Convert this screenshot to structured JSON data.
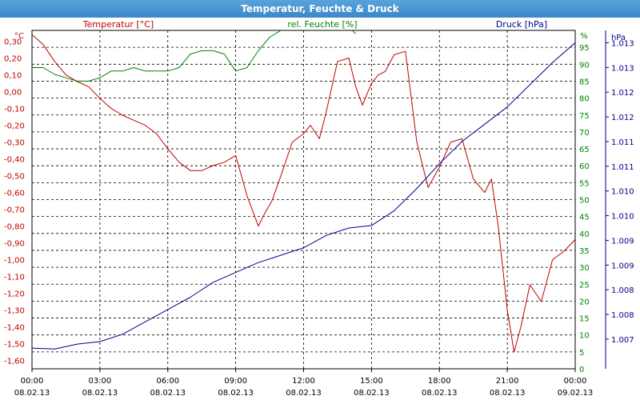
{
  "window": {
    "title": "Temperatur, Feuchte & Druck"
  },
  "colors": {
    "temperature": "#c00000",
    "humidity": "#008000",
    "pressure": "#00008b",
    "grid": "#000000",
    "titlebar": "#3b87c8"
  },
  "chart_data": {
    "type": "line",
    "title": "Temperatur, Feuchte & Druck",
    "grid": true,
    "x_ticks": [
      {
        "time": "00:00",
        "date": "08.02.13"
      },
      {
        "time": "03:00",
        "date": "08.02.13"
      },
      {
        "time": "06:00",
        "date": "08.02.13"
      },
      {
        "time": "09:00",
        "date": "08.02.13"
      },
      {
        "time": "12:00",
        "date": "08.02.13"
      },
      {
        "time": "15:00",
        "date": "08.02.13"
      },
      {
        "time": "18:00",
        "date": "08.02.13"
      },
      {
        "time": "21:00",
        "date": "08.02.13"
      },
      {
        "time": "00:00",
        "date": "09.02.13"
      }
    ],
    "x_range_hours": [
      0,
      24
    ],
    "axes": {
      "temperature": {
        "label": "Temperatur [°C]",
        "unit": "°C",
        "ylim": [
          -1.65,
          0.365
        ],
        "ticks": [
          0.3,
          0.2,
          0.1,
          0.0,
          -0.1,
          -0.2,
          -0.3,
          -0.4,
          -0.5,
          -0.6,
          -0.7,
          -0.8,
          -0.9,
          -1.0,
          -1.1,
          -1.2,
          -1.3,
          -1.4,
          -1.5,
          -1.6
        ],
        "tick_labels": [
          "0,30",
          "0,20",
          "0,10",
          "0,00",
          "-0,10",
          "-0,20",
          "-0,30",
          "-0,40",
          "-0,50",
          "-0,60",
          "-0,70",
          "-0,80",
          "-0,90",
          "-1,00",
          "-1,10",
          "-1,20",
          "-1,30",
          "-1,40",
          "-1,50",
          "-1,60"
        ]
      },
      "humidity": {
        "label": "rel. Feuchte [%]",
        "unit": "%",
        "ylim": [
          0,
          100
        ],
        "ticks": [
          95,
          90,
          85,
          80,
          75,
          70,
          65,
          60,
          55,
          50,
          45,
          40,
          35,
          30,
          25,
          20,
          15,
          10,
          5,
          0
        ],
        "tick_labels": [
          "95",
          "90",
          "85",
          "80",
          "75",
          "70",
          "65",
          "60",
          "55",
          "50",
          "45",
          "40",
          "35",
          "30",
          "25",
          "20",
          "15",
          "10",
          "5",
          "0"
        ]
      },
      "pressure": {
        "label": "Druck [hPa]",
        "unit": "hPa",
        "ylim": [
          1006.6,
          1013.45
        ],
        "ticks": [
          1013.2,
          1012.7,
          1012.2,
          1011.7,
          1011.2,
          1010.7,
          1010.2,
          1009.7,
          1009.2,
          1008.7,
          1008.2,
          1007.7,
          1007.2
        ],
        "tick_labels": [
          "1.013",
          "1.013",
          "1.012",
          "1.012",
          "1.011",
          "1.011",
          "1.010",
          "1.010",
          "1.009",
          "1.009",
          "1.008",
          "1.008",
          "1.007"
        ]
      }
    },
    "series": [
      {
        "name": "Temperatur [°C]",
        "axis": "temperature",
        "color": "#c00000",
        "x": [
          0,
          0.5,
          1,
          1.5,
          2,
          2.5,
          3,
          3.5,
          4,
          4.5,
          5,
          5.5,
          6,
          6.5,
          7,
          7.5,
          8,
          8.5,
          9,
          9.5,
          10,
          10.3,
          10.6,
          11,
          11.5,
          12,
          12.3,
          12.7,
          13,
          13.5,
          14,
          14.3,
          14.6,
          15,
          15.3,
          15.6,
          16,
          16.5,
          17,
          17.5,
          18,
          18.5,
          19,
          19.5,
          20,
          20.3,
          20.6,
          21,
          21.3,
          21.6,
          22,
          22.5,
          23,
          23.5,
          24
        ],
        "y": [
          0.34,
          0.28,
          0.18,
          0.1,
          0.06,
          0.03,
          -0.04,
          -0.1,
          -0.14,
          -0.17,
          -0.2,
          -0.25,
          -0.34,
          -0.42,
          -0.47,
          -0.47,
          -0.44,
          -0.42,
          -0.38,
          -0.62,
          -0.8,
          -0.72,
          -0.65,
          -0.5,
          -0.3,
          -0.25,
          -0.2,
          -0.28,
          -0.12,
          0.18,
          0.2,
          0.03,
          -0.08,
          0.05,
          0.1,
          0.12,
          0.22,
          0.24,
          -0.3,
          -0.57,
          -0.45,
          -0.3,
          -0.28,
          -0.52,
          -0.6,
          -0.52,
          -0.8,
          -1.3,
          -1.55,
          -1.4,
          -1.15,
          -1.25,
          -1.0,
          -0.95,
          -0.88
        ]
      },
      {
        "name": "rel. Feuchte [%]",
        "axis": "humidity",
        "color": "#008000",
        "x": [
          0,
          0.5,
          1,
          1.5,
          2,
          2.5,
          3,
          3.5,
          4,
          4.5,
          5,
          5.5,
          6,
          6.5,
          7,
          7.5,
          8,
          8.5,
          9,
          9.5,
          10,
          10.5,
          11,
          11.5,
          12,
          12.5,
          13,
          13.5,
          14,
          14.3
        ],
        "y": [
          89,
          89,
          87,
          86,
          85,
          85,
          86,
          88,
          88,
          89,
          88,
          88,
          88,
          89,
          93,
          94,
          94,
          93,
          88,
          89,
          94,
          98,
          100,
          101,
          102,
          102,
          101,
          101,
          101,
          99
        ]
      },
      {
        "name": "Druck [hPa]",
        "axis": "pressure",
        "color": "#00008b",
        "x": [
          0,
          1,
          2,
          3,
          4,
          5,
          6,
          7,
          8,
          9,
          10,
          11,
          12,
          13,
          14,
          15,
          16,
          17,
          18,
          19,
          20,
          21,
          22,
          23,
          24
        ],
        "y": [
          1007.02,
          1007.0,
          1007.1,
          1007.15,
          1007.3,
          1007.55,
          1007.8,
          1008.05,
          1008.35,
          1008.55,
          1008.75,
          1008.9,
          1009.05,
          1009.3,
          1009.45,
          1009.5,
          1009.8,
          1010.25,
          1010.75,
          1011.2,
          1011.55,
          1011.9,
          1012.35,
          1012.8,
          1013.2
        ]
      }
    ]
  }
}
